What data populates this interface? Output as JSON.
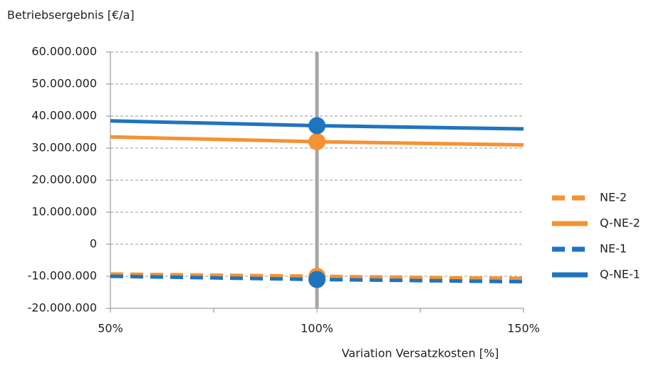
{
  "chart_data": {
    "type": "line",
    "title": "Betriebsergebnis [€/a]",
    "x_label": "Variation Versatzkosten [%]",
    "x": [
      50,
      100,
      150
    ],
    "xlim": [
      50,
      150
    ],
    "xticks": [
      {
        "value": 50,
        "label": "50%"
      },
      {
        "value": 100,
        "label": "100%"
      },
      {
        "value": 150,
        "label": "150%"
      }
    ],
    "ylim": [
      -20000000,
      60000000
    ],
    "yticks": [
      {
        "value": -20000000,
        "label": "-20.000.000"
      },
      {
        "value": -10000000,
        "label": "-10.000.000"
      },
      0,
      {
        "value": 10000000,
        "label": "10.000.000"
      },
      {
        "value": 20000000,
        "label": "20.000.000"
      },
      {
        "value": 30000000,
        "label": "30.000.000"
      },
      {
        "value": 40000000,
        "label": "40.000.000"
      },
      {
        "value": 50000000,
        "label": "50.000.000"
      },
      {
        "value": 60000000,
        "label": "60.000.000"
      }
    ],
    "grid": true,
    "vline": 100,
    "legend": "right",
    "series": [
      {
        "name": "NE-2",
        "color": "#f59233",
        "style": "dashed",
        "values": [
          -9300000,
          -10000000,
          -10700000
        ]
      },
      {
        "name": "Q-NE-2",
        "color": "#f59233",
        "style": "solid",
        "values": [
          33500000,
          32000000,
          31000000
        ]
      },
      {
        "name": "NE-1",
        "color": "#1f74bf",
        "style": "dashed",
        "values": [
          -10000000,
          -11000000,
          -11700000
        ]
      },
      {
        "name": "Q-NE-1",
        "color": "#1f74bf",
        "style": "solid",
        "values": [
          38500000,
          37000000,
          36000000
        ]
      }
    ]
  }
}
